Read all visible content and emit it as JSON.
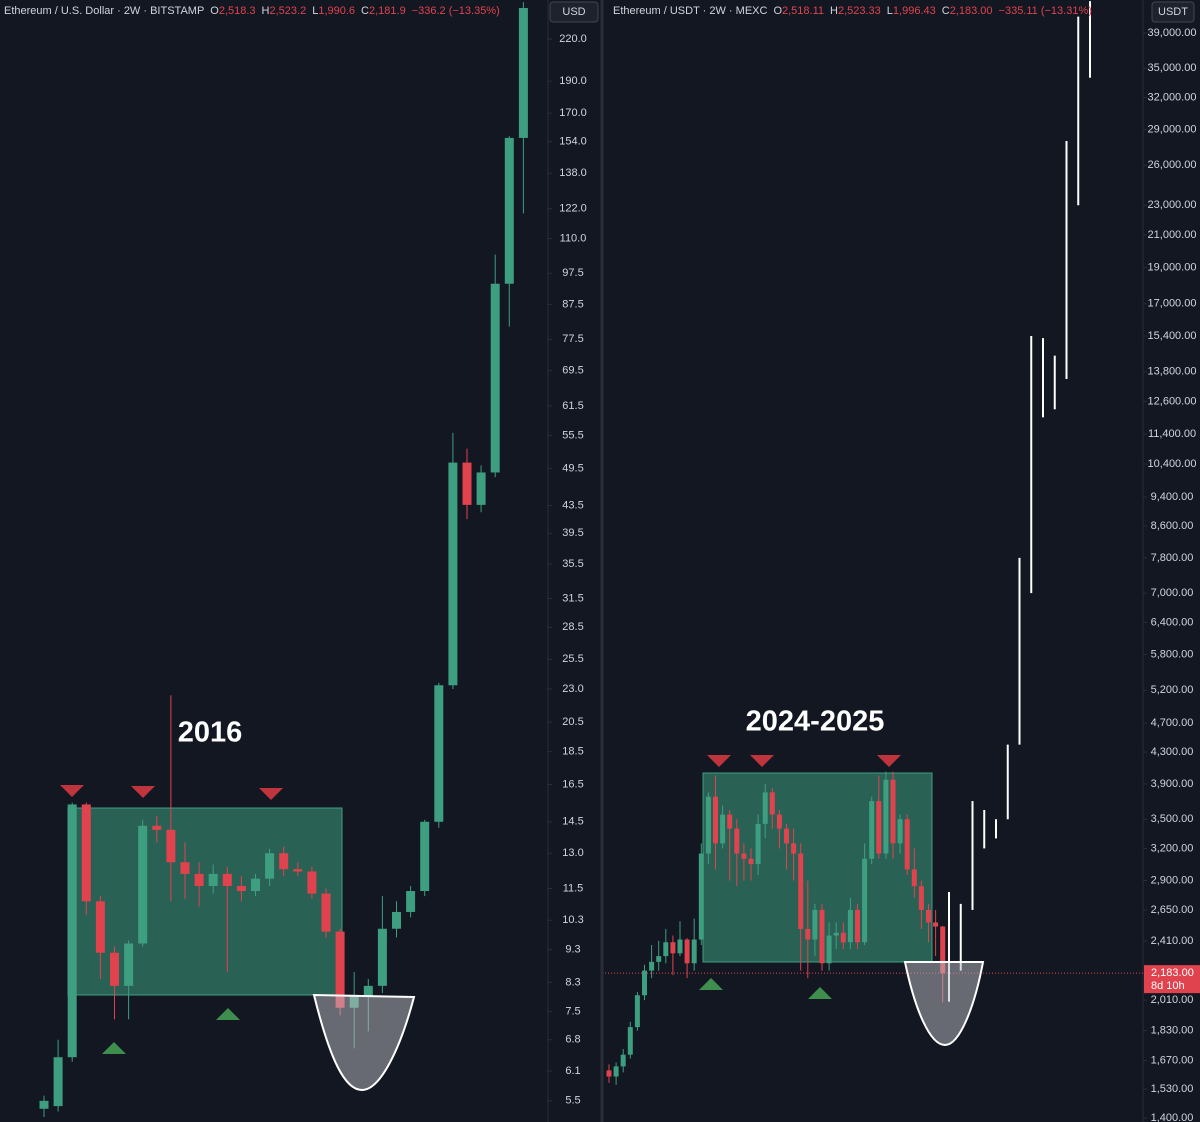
{
  "chart_data": [
    {
      "type": "candlestick",
      "title": "Ethereum / U.S. Dollar · 2W · BITSTAMP",
      "currency": "USD",
      "log_scale": true,
      "header_values": [
        {
          "key": "O",
          "value": 2518.3,
          "label": "2,518.3"
        },
        {
          "key": "H",
          "value": 2523.2,
          "label": "2,523.2"
        },
        {
          "key": "L",
          "value": 1990.6,
          "label": "1,990.6"
        },
        {
          "key": "C",
          "value": 2181.9,
          "label": "2,181.9"
        }
      ],
      "change": "−336.2 (−13.35%)",
      "annotation": "2016",
      "up_color": "#3e9e80",
      "down_color": "#e0434d",
      "ylim": [
        5.11,
        251.9
      ],
      "yticks": [
        {
          "value": 220,
          "label": "220.0"
        },
        {
          "value": 190,
          "label": "190.0"
        },
        {
          "value": 170,
          "label": "170.0"
        },
        {
          "value": 154,
          "label": "154.0"
        },
        {
          "value": 138,
          "label": "138.0"
        },
        {
          "value": 122,
          "label": "122.0"
        },
        {
          "value": 110,
          "label": "110.0"
        },
        97.5,
        87.5,
        77.5,
        69.5,
        61.5,
        55.5,
        49.5,
        43.5,
        39.5,
        35.5,
        31.5,
        28.5,
        25.5,
        {
          "value": 23,
          "label": "23.0"
        },
        20.5,
        18.5,
        16.5,
        14.5,
        {
          "value": 13,
          "label": "13.0"
        },
        11.5,
        10.3,
        9.3,
        8.3,
        7.5,
        6.8,
        6.1,
        5.5
      ],
      "open": [
        5.35,
        5.4,
        6.4,
        15.4,
        11.0,
        9.2,
        8.2,
        9.5,
        14.3,
        14.1,
        12.6,
        12.1,
        11.6,
        12.1,
        11.6,
        11.4,
        11.9,
        13.0,
        12.3,
        12.2,
        11.3,
        9.9,
        7.6,
        7.9,
        8.2,
        10.0,
        10.6,
        11.4,
        14.5,
        23.3,
        50.5,
        43.6,
        48.8,
        94.0,
        156
      ],
      "high": [
        5.6,
        6.8,
        15.5,
        15.5,
        11.2,
        9.4,
        9.6,
        14.6,
        14.8,
        22.5,
        13.5,
        12.6,
        12.5,
        12.4,
        12.0,
        12.1,
        13.2,
        13.3,
        12.6,
        12.4,
        11.5,
        10.0,
        8.6,
        8.4,
        11.2,
        11.0,
        11.6,
        14.6,
        23.5,
        56.0,
        53.0,
        50.0,
        104,
        157,
        250
      ],
      "low": [
        5.2,
        5.3,
        6.3,
        10.5,
        8.4,
        7.3,
        7.3,
        9.4,
        13.5,
        11.0,
        11.1,
        10.8,
        11.3,
        8.6,
        11.0,
        11.2,
        11.6,
        12.0,
        12.0,
        11.1,
        9.7,
        7.4,
        6.6,
        7.0,
        8.0,
        9.7,
        10.4,
        11.2,
        14.2,
        23.0,
        41.5,
        42.5,
        48.0,
        81,
        120
      ],
      "close": [
        5.5,
        6.4,
        15.4,
        11.0,
        9.2,
        8.2,
        9.5,
        14.3,
        14.1,
        12.6,
        12.1,
        11.6,
        12.1,
        11.6,
        11.4,
        11.9,
        13.0,
        12.3,
        12.2,
        11.3,
        9.9,
        7.6,
        7.9,
        8.2,
        10.0,
        10.6,
        11.4,
        14.5,
        23.3,
        50.5,
        43.6,
        48.8,
        94.0,
        156,
        245
      ]
    },
    {
      "type": "candlestick",
      "title": "Ethereum / USDT · 2W · MEXC",
      "currency": "USDT",
      "log_scale": true,
      "header_values": [
        {
          "key": "O",
          "value": 2518.11,
          "label": "2,518.11"
        },
        {
          "key": "H",
          "value": 2523.33,
          "label": "2,523.33"
        },
        {
          "key": "L",
          "value": 1996.43,
          "label": "1,996.43"
        },
        {
          "key": "C",
          "value": 2183.0,
          "label": "2,183.00"
        }
      ],
      "change": "−335.11 (−13.31%)",
      "annotation": "2024-2025",
      "up_color": "#3e9e80",
      "down_color": "#e0434d",
      "last_price": {
        "value": 2183,
        "label": "2,183.00"
      },
      "countdown": "8d 10h",
      "ylim": [
        1383,
        43150
      ],
      "yticks": [
        {
          "value": 39000,
          "label": "39,000.00"
        },
        {
          "value": 35000,
          "label": "35,000.00"
        },
        {
          "value": 32000,
          "label": "32,000.00"
        },
        {
          "value": 29000,
          "label": "29,000.00"
        },
        {
          "value": 26000,
          "label": "26,000.00"
        },
        {
          "value": 23000,
          "label": "23,000.00"
        },
        {
          "value": 21000,
          "label": "21,000.00"
        },
        {
          "value": 19000,
          "label": "19,000.00"
        },
        {
          "value": 17000,
          "label": "17,000.00"
        },
        {
          "value": 15400,
          "label": "15,400.00"
        },
        {
          "value": 13800,
          "label": "13,800.00"
        },
        {
          "value": 12600,
          "label": "12,600.00"
        },
        {
          "value": 11400,
          "label": "11,400.00"
        },
        {
          "value": 10400,
          "label": "10,400.00"
        },
        {
          "value": 9400,
          "label": "9,400.00"
        },
        {
          "value": 8600,
          "label": "8,600.00"
        },
        {
          "value": 7800,
          "label": "7,800.00"
        },
        {
          "value": 7000,
          "label": "7,000.00"
        },
        {
          "value": 6400,
          "label": "6,400.00"
        },
        {
          "value": 5800,
          "label": "5,800.00"
        },
        {
          "value": 5200,
          "label": "5,200.00"
        },
        {
          "value": 4700,
          "label": "4,700.00"
        },
        {
          "value": 4300,
          "label": "4,300.00"
        },
        {
          "value": 3900,
          "label": "3,900.00"
        },
        {
          "value": 3500,
          "label": "3,500.00"
        },
        {
          "value": 3200,
          "label": "3,200.00"
        },
        {
          "value": 2900,
          "label": "2,900.00"
        },
        {
          "value": 2650,
          "label": "2,650.00"
        },
        {
          "value": 2410,
          "label": "2,410.00"
        },
        {
          "value": 2010,
          "label": "2,010.00"
        },
        {
          "value": 1830,
          "label": "1,830.00"
        },
        {
          "value": 1670,
          "label": "1,670.00"
        },
        {
          "value": 1530,
          "label": "1,530.00"
        },
        {
          "value": 1400,
          "label": "1,400.00"
        }
      ],
      "open": [
        1620,
        1590,
        1640,
        1700,
        1850,
        2040,
        2200,
        2260,
        2300,
        2400,
        2320,
        2420,
        2250,
        2420,
        3150,
        3750,
        3250,
        3550,
        3400,
        3150,
        3100,
        3050,
        3450,
        3800,
        3550,
        3400,
        3250,
        3150,
        2500,
        2420,
        2650,
        2250,
        2450,
        2470,
        2400,
        2650,
        2400,
        3100,
        3700,
        3150,
        3950,
        3250,
        3500,
        3000,
        2850,
        2650,
        2550,
        2518.11
      ],
      "high": [
        1650,
        1660,
        1730,
        1880,
        2060,
        2240,
        2380,
        2410,
        2500,
        2450,
        2560,
        2430,
        2580,
        3250,
        3800,
        4000,
        3650,
        3600,
        3500,
        3250,
        3200,
        3550,
        3900,
        3850,
        3600,
        3450,
        3400,
        3250,
        2900,
        2700,
        2700,
        2550,
        2550,
        2550,
        2750,
        2700,
        3250,
        3750,
        4000,
        4050,
        4050,
        3550,
        3550,
        3200,
        2900,
        2700,
        2650,
        2523.33
      ],
      "low": [
        1560,
        1550,
        1610,
        1680,
        1830,
        2010,
        2150,
        2200,
        2250,
        2170,
        2300,
        2150,
        2200,
        2380,
        3050,
        3000,
        3200,
        2900,
        2850,
        2900,
        2900,
        2950,
        3300,
        3400,
        3200,
        3000,
        2900,
        2200,
        2150,
        2300,
        2200,
        2200,
        2350,
        2350,
        2350,
        2350,
        2380,
        3050,
        3100,
        3100,
        3100,
        3150,
        2950,
        2750,
        2500,
        2400,
        2300,
        1996.43
      ],
      "close": [
        1590,
        1640,
        1700,
        1850,
        2040,
        2200,
        2260,
        2300,
        2400,
        2320,
        2420,
        2250,
        2420,
        3150,
        3750,
        3250,
        3550,
        3400,
        3150,
        3100,
        3050,
        3450,
        3800,
        3550,
        3400,
        3250,
        3150,
        2500,
        2420,
        2650,
        2250,
        2450,
        2470,
        2400,
        2650,
        2400,
        3100,
        3700,
        3150,
        3950,
        3250,
        3500,
        3000,
        2850,
        2650,
        2550,
        2518,
        2183
      ],
      "projection": {
        "color": "#ffffff",
        "low": [
          2000,
          2200,
          2650,
          3200,
          3300,
          3500,
          4400,
          7000,
          12000,
          12300,
          13500,
          23000,
          34000
        ],
        "high": [
          2800,
          2700,
          3700,
          3600,
          3500,
          4400,
          7800,
          15400,
          15300,
          14500,
          28000,
          41000,
          43000
        ]
      }
    }
  ]
}
